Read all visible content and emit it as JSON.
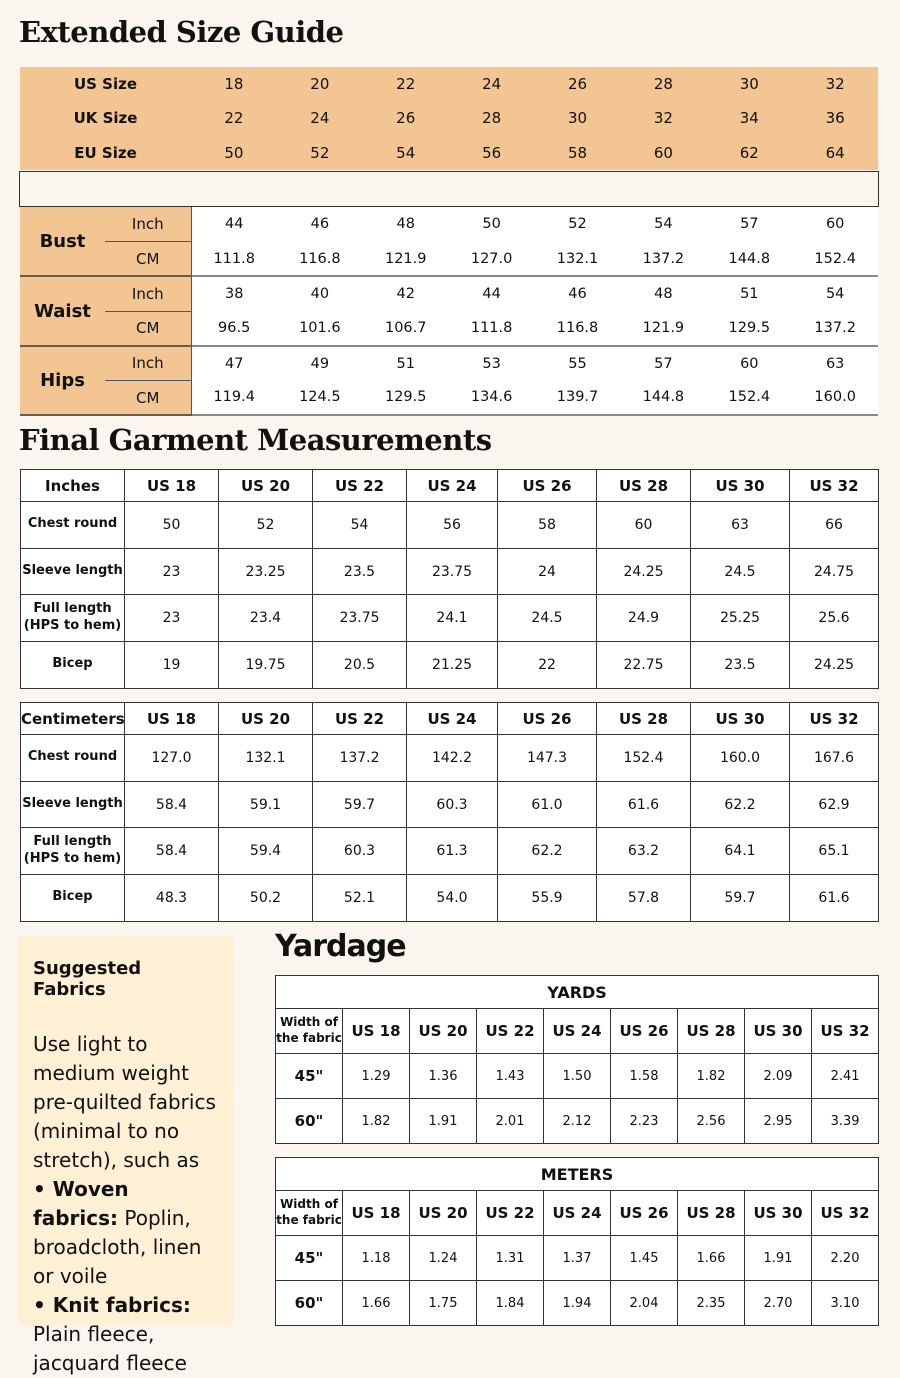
{
  "size_guide": {
    "title": "Extended Size Guide",
    "size_rows": [
      {
        "label": "US Size",
        "values": [
          "18",
          "20",
          "22",
          "24",
          "26",
          "28",
          "30",
          "32"
        ]
      },
      {
        "label": "UK Size",
        "values": [
          "22",
          "24",
          "26",
          "28",
          "30",
          "32",
          "34",
          "36"
        ]
      },
      {
        "label": "EU Size",
        "values": [
          "50",
          "52",
          "54",
          "56",
          "58",
          "60",
          "62",
          "64"
        ]
      }
    ],
    "measurements": [
      {
        "label": "Bust",
        "inch_label": "Inch",
        "cm_label": "CM",
        "inch": [
          "44",
          "46",
          "48",
          "50",
          "52",
          "54",
          "57",
          "60"
        ],
        "cm": [
          "111.8",
          "116.8",
          "121.9",
          "127.0",
          "132.1",
          "137.2",
          "144.8",
          "152.4"
        ]
      },
      {
        "label": "Waist",
        "inch_label": "Inch",
        "cm_label": "CM",
        "inch": [
          "38",
          "40",
          "42",
          "44",
          "46",
          "48",
          "51",
          "54"
        ],
        "cm": [
          "96.5",
          "101.6",
          "106.7",
          "111.8",
          "116.8",
          "121.9",
          "129.5",
          "137.2"
        ]
      },
      {
        "label": "Hips",
        "inch_label": "Inch",
        "cm_label": "CM",
        "inch": [
          "47",
          "49",
          "51",
          "53",
          "55",
          "57",
          "60",
          "63"
        ],
        "cm": [
          "119.4",
          "124.5",
          "129.5",
          "134.6",
          "139.7",
          "144.8",
          "152.4",
          "160.0"
        ]
      }
    ]
  },
  "garment": {
    "title": "Final Garment Measurements",
    "tables": [
      {
        "unit": "Inches",
        "headers": [
          "US 18",
          "US 20",
          "US 22",
          "US 24",
          "US 26",
          "US 28",
          "US 30",
          "US 32"
        ],
        "rows": [
          {
            "label": "Chest round",
            "values": [
              "50",
              "52",
              "54",
              "56",
              "58",
              "60",
              "63",
              "66"
            ]
          },
          {
            "label": "Sleeve length",
            "values": [
              "23",
              "23.25",
              "23.5",
              "23.75",
              "24",
              "24.25",
              "24.5",
              "24.75"
            ]
          },
          {
            "label": "Full length\n(HPS to hem)",
            "values": [
              "23",
              "23.4",
              "23.75",
              "24.1",
              "24.5",
              "24.9",
              "25.25",
              "25.6"
            ]
          },
          {
            "label": "Bicep",
            "values": [
              "19",
              "19.75",
              "20.5",
              "21.25",
              "22",
              "22.75",
              "23.5",
              "24.25"
            ]
          }
        ]
      },
      {
        "unit": "Centimeters",
        "headers": [
          "US 18",
          "US 20",
          "US 22",
          "US 24",
          "US 26",
          "US 28",
          "US 30",
          "US 32"
        ],
        "rows": [
          {
            "label": "Chest round",
            "values": [
              "127.0",
              "132.1",
              "137.2",
              "142.2",
              "147.3",
              "152.4",
              "160.0",
              "167.6"
            ]
          },
          {
            "label": "Sleeve length",
            "values": [
              "58.4",
              "59.1",
              "59.7",
              "60.3",
              "61.0",
              "61.6",
              "62.2",
              "62.9"
            ]
          },
          {
            "label": "Full length\n(HPS to hem)",
            "values": [
              "58.4",
              "59.4",
              "60.3",
              "61.3",
              "62.2",
              "63.2",
              "64.1",
              "65.1"
            ]
          },
          {
            "label": "Bicep",
            "values": [
              "48.3",
              "50.2",
              "52.1",
              "54.0",
              "55.9",
              "57.8",
              "59.7",
              "61.6"
            ]
          }
        ]
      }
    ]
  },
  "fabrics": {
    "title": "Suggested Fabrics",
    "intro": "Use light to medium weight pre-quilted fabrics (minimal to no stretch), such as",
    "items": [
      {
        "bold": "• Woven fabrics:",
        "text": " Poplin, broadcloth, linen or voile"
      },
      {
        "bold": "• Knit fabrics:",
        "text": " Plain fleece, jacquard fleece"
      }
    ]
  },
  "yardage": {
    "title": "Yardage",
    "tables": [
      {
        "unit": "YARDS",
        "width_label": "Width of\nthe fabric",
        "headers": [
          "US 18",
          "US 20",
          "US 22",
          "US 24",
          "US 26",
          "US 28",
          "US 30",
          "US 32"
        ],
        "rows": [
          {
            "label": "45\"",
            "values": [
              "1.29",
              "1.36",
              "1.43",
              "1.50",
              "1.58",
              "1.82",
              "2.09",
              "2.41"
            ]
          },
          {
            "label": "60\"",
            "values": [
              "1.82",
              "1.91",
              "2.01",
              "2.12",
              "2.23",
              "2.56",
              "2.95",
              "3.39"
            ]
          }
        ]
      },
      {
        "unit": "METERS",
        "width_label": "Width of\nthe fabric",
        "headers": [
          "US 18",
          "US 20",
          "US 22",
          "US 24",
          "US 26",
          "US 28",
          "US 30",
          "US 32"
        ],
        "rows": [
          {
            "label": "45\"",
            "values": [
              "1.18",
              "1.24",
              "1.31",
              "1.37",
              "1.45",
              "1.66",
              "1.91",
              "2.20"
            ]
          },
          {
            "label": "60\"",
            "values": [
              "1.66",
              "1.75",
              "1.84",
              "1.94",
              "2.04",
              "2.35",
              "2.70",
              "3.10"
            ]
          }
        ]
      }
    ]
  },
  "colors": {
    "background": "#faf5ef",
    "header_fill": "#f3c592",
    "fabric_box": "#fff0d6"
  }
}
